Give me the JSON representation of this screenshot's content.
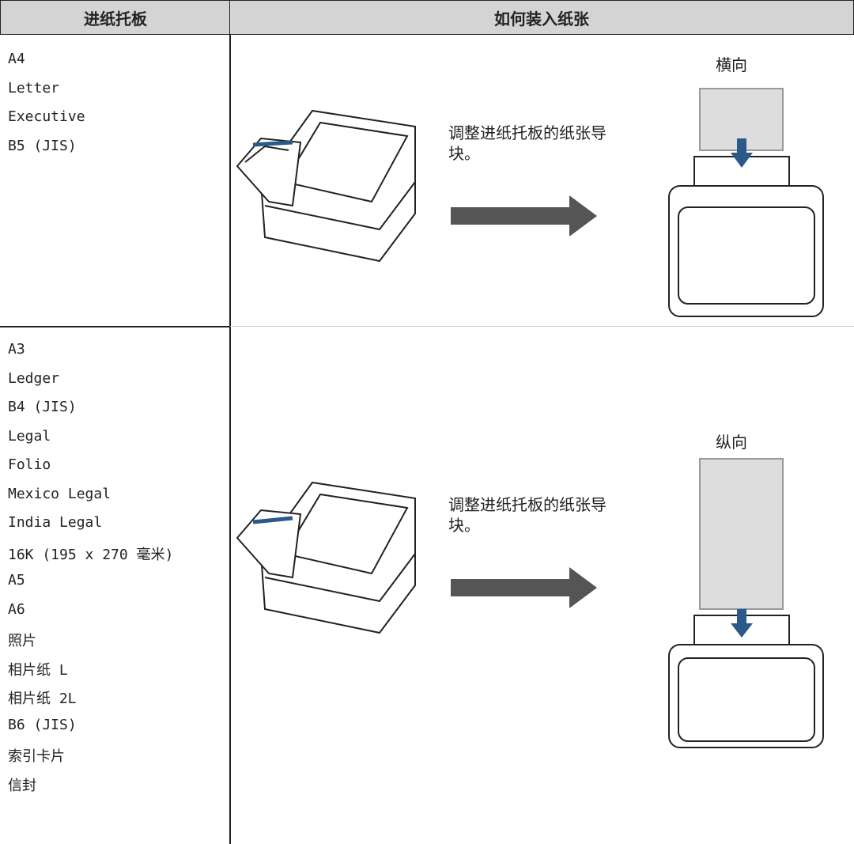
{
  "table": {
    "header": [
      "进纸托板",
      "如何装入纸张"
    ],
    "rows": [
      {
        "sizes": [
          "A4",
          "Letter",
          "Executive",
          "B5 (JIS)"
        ],
        "instruction": "调整进纸托板的纸张导块。",
        "orientation": "横向"
      },
      {
        "sizes": [
          "A3",
          "Ledger",
          "B4 (JIS)",
          "Legal",
          "Folio",
          "Mexico Legal",
          "India Legal",
          "16K (195 x 270 毫米)",
          "A5",
          "A6",
          "照片",
          "相片纸 L",
          "相片纸 2L",
          "B6 (JIS)",
          "索引卡片",
          "信封"
        ],
        "instruction": "调整进纸托板的纸张导块。",
        "orientation": "纵向"
      }
    ]
  }
}
